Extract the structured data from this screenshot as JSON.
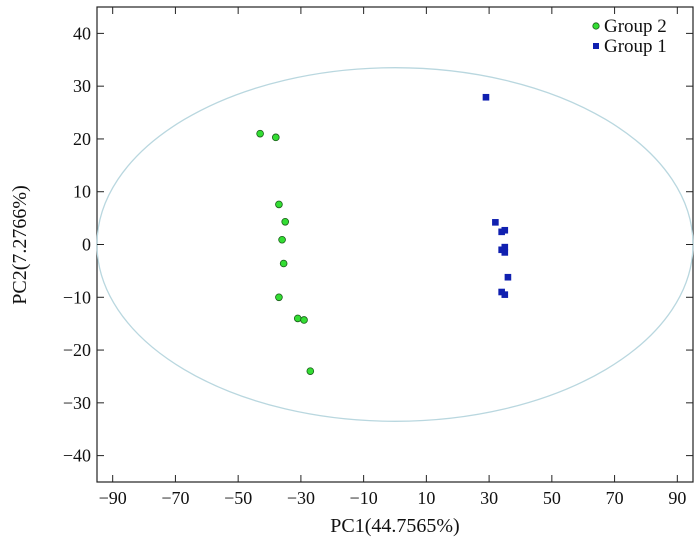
{
  "chart_data": {
    "type": "scatter",
    "title": "",
    "xlabel": "PC1(44.7565%)",
    "ylabel": "PC2(7.2766%)",
    "xlim": [
      -95,
      95
    ],
    "ylim": [
      -45,
      45
    ],
    "xticks": [
      -90,
      -70,
      -50,
      -30,
      -10,
      10,
      30,
      50,
      70,
      90
    ],
    "yticks": [
      40,
      30,
      20,
      10,
      0,
      -10,
      -20,
      -30,
      -40
    ],
    "xtick_labels": [
      "−90",
      "−70",
      "−50",
      "−30",
      "−10",
      "10",
      "30",
      "50",
      "70",
      "90"
    ],
    "ytick_labels": [
      "40",
      "30",
      "20",
      "10",
      "0",
      "−10",
      "−20",
      "−30",
      "−40"
    ],
    "legend_position": "top-right",
    "ellipse": {
      "cx": 0,
      "cy": 0,
      "rx": 95,
      "ry": 33.5,
      "color": "#b9d7df"
    },
    "series": [
      {
        "name": "Group 2",
        "marker": "circle",
        "color": "#33dd33",
        "points": [
          [
            -43,
            21
          ],
          [
            -38,
            20.3
          ],
          [
            -37,
            7.6
          ],
          [
            -35,
            4.3
          ],
          [
            -36,
            0.9
          ],
          [
            -35.5,
            -3.6
          ],
          [
            -37,
            -10
          ],
          [
            -31,
            -14
          ],
          [
            -29,
            -14.3
          ],
          [
            -27,
            -24
          ]
        ]
      },
      {
        "name": "Group 1",
        "marker": "square",
        "color": "#1020b0",
        "points": [
          [
            29,
            27.9
          ],
          [
            32,
            4.2
          ],
          [
            34,
            2.4
          ],
          [
            35,
            2.7
          ],
          [
            34,
            -1
          ],
          [
            35,
            -0.5
          ],
          [
            35,
            -1.5
          ],
          [
            36,
            -6.2
          ],
          [
            34,
            -9
          ],
          [
            35,
            -9.5
          ]
        ]
      }
    ]
  }
}
